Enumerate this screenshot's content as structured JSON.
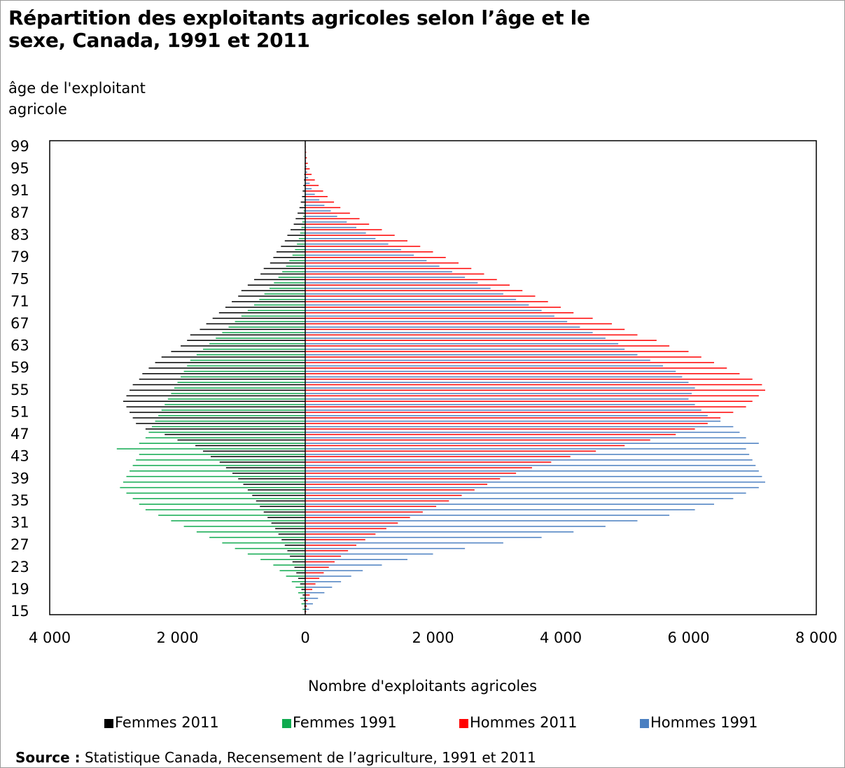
{
  "chart_data": {
    "type": "bar",
    "orientation": "horizontal",
    "layout": "population-pyramid",
    "title": "Répartition des exploitants agricoles selon l’âge et le\nsexe, Canada, 1991 et 2011",
    "ylabel": "âge de l'exploitant\nagricole",
    "xlabel": "Nombre d'exploitants agricoles",
    "xlim": [
      -4000,
      8000
    ],
    "ylim": [
      15,
      99
    ],
    "x_ticks": [
      -4000,
      -2000,
      0,
      2000,
      4000,
      6000,
      8000
    ],
    "x_tick_labels": [
      "4 000",
      "2 000",
      "0",
      "2 000",
      "4 000",
      "6 000",
      "8 000"
    ],
    "y_tick_labels": [
      "99",
      "95",
      "91",
      "87",
      "83",
      "79",
      "75",
      "71",
      "67",
      "63",
      "59",
      "55",
      "51",
      "47",
      "43",
      "39",
      "35",
      "31",
      "27",
      "23",
      "19",
      "15"
    ],
    "ages": [
      15,
      16,
      17,
      18,
      19,
      20,
      21,
      22,
      23,
      24,
      25,
      26,
      27,
      28,
      29,
      30,
      31,
      32,
      33,
      34,
      35,
      36,
      37,
      38,
      39,
      40,
      41,
      42,
      43,
      44,
      45,
      46,
      47,
      48,
      49,
      50,
      51,
      52,
      53,
      54,
      55,
      56,
      57,
      58,
      59,
      60,
      61,
      62,
      63,
      64,
      65,
      66,
      67,
      68,
      69,
      70,
      71,
      72,
      73,
      74,
      75,
      76,
      77,
      78,
      79,
      80,
      81,
      82,
      83,
      84,
      85,
      86,
      87,
      88,
      89,
      90,
      91,
      92,
      93,
      94,
      95,
      96,
      97,
      98,
      99
    ],
    "series": [
      {
        "name": "Femmes 2011",
        "color": "#000000",
        "side": "left",
        "values": [
          10,
          15,
          25,
          40,
          60,
          80,
          110,
          140,
          170,
          200,
          240,
          280,
          320,
          370,
          420,
          470,
          530,
          590,
          650,
          710,
          770,
          830,
          900,
          970,
          1050,
          1140,
          1240,
          1340,
          1480,
          1600,
          1720,
          2000,
          2200,
          2500,
          2650,
          2700,
          2750,
          2800,
          2850,
          2800,
          2750,
          2700,
          2600,
          2550,
          2450,
          2350,
          2250,
          2100,
          1950,
          1850,
          1800,
          1650,
          1550,
          1450,
          1350,
          1250,
          1150,
          1050,
          1000,
          900,
          800,
          700,
          650,
          550,
          500,
          450,
          380,
          320,
          280,
          230,
          180,
          150,
          120,
          90,
          70,
          50,
          40,
          30,
          20,
          15,
          10,
          8,
          6,
          4,
          3
        ]
      },
      {
        "name": "Femmes 1991",
        "color": "#0faa4f",
        "side": "left",
        "values": [
          40,
          60,
          80,
          110,
          150,
          210,
          300,
          400,
          500,
          700,
          900,
          1100,
          1300,
          1500,
          1700,
          1900,
          2100,
          2300,
          2500,
          2600,
          2700,
          2800,
          2900,
          2850,
          2800,
          2750,
          2700,
          2650,
          2600,
          2950,
          2600,
          2500,
          2450,
          2400,
          2350,
          2300,
          2250,
          2200,
          2150,
          2100,
          2050,
          2000,
          1950,
          1900,
          1850,
          1800,
          1700,
          1600,
          1500,
          1400,
          1300,
          1200,
          1100,
          1000,
          900,
          800,
          720,
          640,
          560,
          490,
          420,
          360,
          300,
          250,
          200,
          160,
          130,
          100,
          80,
          60,
          45,
          35,
          25,
          18,
          12,
          8,
          6,
          4,
          3,
          2,
          2,
          1,
          1,
          1,
          1
        ]
      },
      {
        "name": "Hommes 2011",
        "color": "#ff0000",
        "side": "right",
        "values": [
          15,
          25,
          40,
          70,
          110,
          160,
          220,
          290,
          370,
          460,
          560,
          670,
          800,
          940,
          1100,
          1270,
          1450,
          1640,
          1840,
          2050,
          2250,
          2450,
          2650,
          2850,
          3050,
          3300,
          3550,
          3850,
          4150,
          4550,
          5000,
          5400,
          5800,
          6100,
          6300,
          6500,
          6700,
          6900,
          7000,
          7100,
          7200,
          7150,
          7000,
          6800,
          6600,
          6400,
          6200,
          6000,
          5700,
          5500,
          5200,
          5000,
          4800,
          4500,
          4200,
          4000,
          3800,
          3600,
          3400,
          3200,
          3000,
          2800,
          2600,
          2400,
          2200,
          2000,
          1800,
          1600,
          1400,
          1200,
          1000,
          850,
          700,
          550,
          450,
          350,
          280,
          210,
          150,
          100,
          70,
          40,
          25,
          15,
          8
        ]
      },
      {
        "name": "Hommes 1991",
        "color": "#4a7fc1",
        "side": "right",
        "values": [
          60,
          120,
          200,
          300,
          420,
          560,
          720,
          900,
          1200,
          1600,
          2000,
          2500,
          3100,
          3700,
          4200,
          4700,
          5200,
          5700,
          6100,
          6400,
          6700,
          6900,
          7100,
          7200,
          7150,
          7100,
          7050,
          7000,
          6950,
          6900,
          7100,
          6900,
          6800,
          6700,
          6500,
          6300,
          6200,
          6100,
          6000,
          6050,
          6100,
          6000,
          5900,
          5800,
          5600,
          5400,
          5200,
          5000,
          4900,
          4700,
          4500,
          4300,
          4100,
          3900,
          3700,
          3500,
          3300,
          3100,
          2900,
          2700,
          2500,
          2300,
          2100,
          1900,
          1700,
          1500,
          1300,
          1100,
          950,
          800,
          650,
          500,
          400,
          300,
          220,
          150,
          100,
          70,
          45,
          30,
          20,
          12,
          8,
          5,
          3
        ]
      }
    ],
    "legend_position": "bottom",
    "grid": false
  },
  "x_axis_label": "Nombre d'exploitants agricoles",
  "legend": [
    {
      "label": "Femmes 2011",
      "color": "#000000"
    },
    {
      "label": "Femmes 1991",
      "color": "#0faa4f"
    },
    {
      "label": "Hommes 2011",
      "color": "#ff0000"
    },
    {
      "label": "Hommes 1991",
      "color": "#4a7fc1"
    }
  ],
  "source": {
    "label": "Source :",
    "text": " Statistique Canada, Recensement de l’agriculture, 1991 et 2011"
  }
}
